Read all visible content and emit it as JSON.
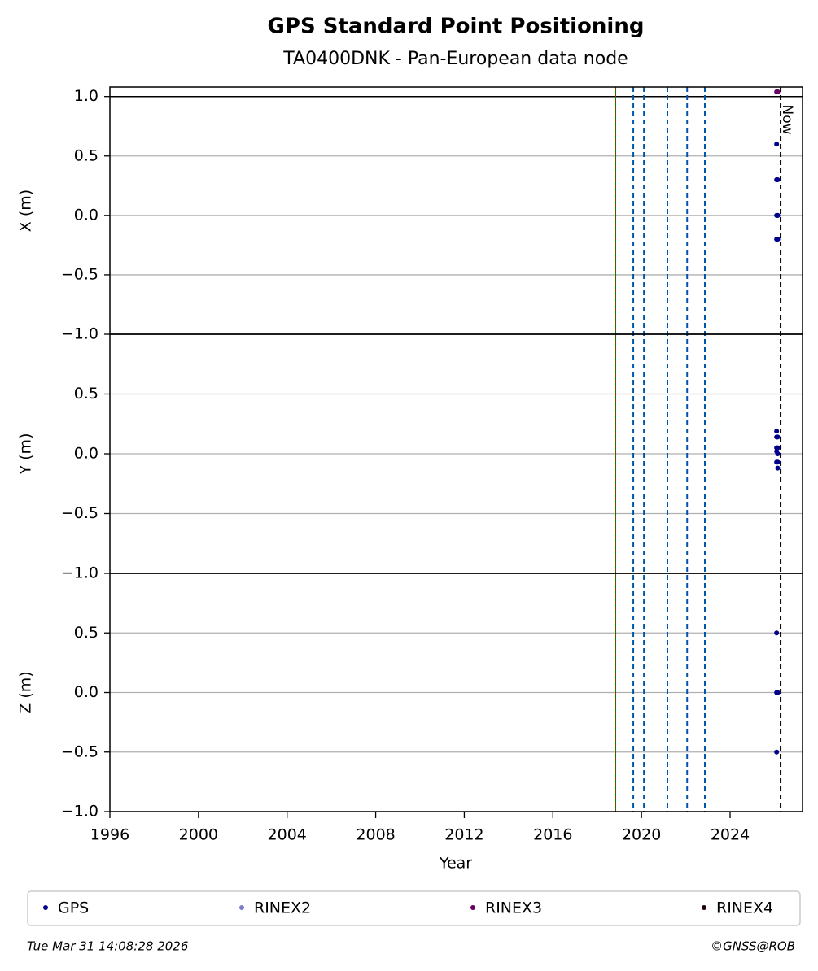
{
  "figure": {
    "title": "GPS Standard Point Positioning",
    "subtitle": "TA0400DNK - Pan-European data node",
    "xlabel": "Year",
    "xlim": [
      1996,
      2027.27
    ],
    "xticks": [
      1996,
      2000,
      2004,
      2008,
      2012,
      2016,
      2020,
      2024
    ],
    "vlines": [
      {
        "x": 2018.82,
        "color": "#008000",
        "dash": "#ff0000"
      },
      {
        "x": 2019.63,
        "color": "#0055aa",
        "style": "dashed"
      },
      {
        "x": 2020.11,
        "color": "#0055aa",
        "style": "dashed"
      },
      {
        "x": 2021.17,
        "color": "#0055aa",
        "style": "dashed"
      },
      {
        "x": 2022.06,
        "color": "#0055aa",
        "style": "dashed"
      },
      {
        "x": 2022.86,
        "color": "#0055aa",
        "style": "dashed"
      },
      {
        "x": 2026.28,
        "color": "#000000",
        "style": "dashed",
        "label": "Now"
      }
    ],
    "legend": [
      {
        "name": "GPS",
        "color": "#00008b"
      },
      {
        "name": "RINEX2",
        "color": "#7b7bc8"
      },
      {
        "name": "RINEX3",
        "color": "#660066"
      },
      {
        "name": "RINEX4",
        "color": "#220011"
      }
    ],
    "footer_left": "Tue Mar 31 14:08:28 2026",
    "footer_right": "©GNSS@ROB"
  },
  "chart_data": [
    {
      "type": "scatter",
      "ylabel": "X (m)",
      "ylim": [
        -1,
        1.08
      ],
      "grid": true,
      "hlines": [
        1
      ],
      "yticks": [
        {
          "value": -1,
          "label": "−1.0"
        },
        {
          "value": -0.5,
          "label": "−0.5"
        },
        {
          "value": 0,
          "label": "0.0"
        },
        0.5,
        {
          "value": 1,
          "label": "1.0"
        }
      ],
      "series": [
        {
          "name": "GPS",
          "color": "#00008b",
          "x": [
            2026.1,
            2026.15,
            2026.1,
            2026.15,
            2026.1,
            2026.15,
            2026.1,
            2026.15
          ],
          "values": [
            0.6,
            0.3,
            0.3,
            0.0,
            0.0,
            0.0,
            -0.2,
            -0.2
          ]
        },
        {
          "name": "RINEX3",
          "color": "#660066",
          "x": [
            2026.1,
            2026.15
          ],
          "values": [
            1.04,
            1.04
          ]
        }
      ]
    },
    {
      "type": "scatter",
      "ylabel": "Y (m)",
      "ylim": [
        -1,
        1
      ],
      "grid": true,
      "yticks": [
        {
          "value": -1,
          "label": "−1.0"
        },
        {
          "value": -0.5,
          "label": "−0.5"
        },
        {
          "value": 0,
          "label": "0.0"
        },
        0.5
      ],
      "series": [
        {
          "name": "GPS",
          "color": "#00008b",
          "x": [
            2026.1,
            2026.1,
            2026.15,
            2026.1,
            2026.15,
            2026.1,
            2026.15,
            2026.1,
            2026.15,
            2026.15
          ],
          "values": [
            0.19,
            0.14,
            0.14,
            0.05,
            0.05,
            0.02,
            0.0,
            -0.07,
            -0.07,
            -0.12
          ]
        }
      ]
    },
    {
      "type": "scatter",
      "ylabel": "Z (m)",
      "ylim": [
        -1,
        1
      ],
      "grid": true,
      "yticks": [
        {
          "value": -1,
          "label": "−1.0"
        },
        {
          "value": -0.5,
          "label": "−0.5"
        },
        {
          "value": 0,
          "label": "0.0"
        },
        0.5
      ],
      "series": [
        {
          "name": "GPS",
          "color": "#00008b",
          "x": [
            2026.1,
            2026.1,
            2026.15,
            2026.1
          ],
          "values": [
            0.5,
            0.0,
            0.0,
            -0.5
          ]
        }
      ]
    }
  ]
}
